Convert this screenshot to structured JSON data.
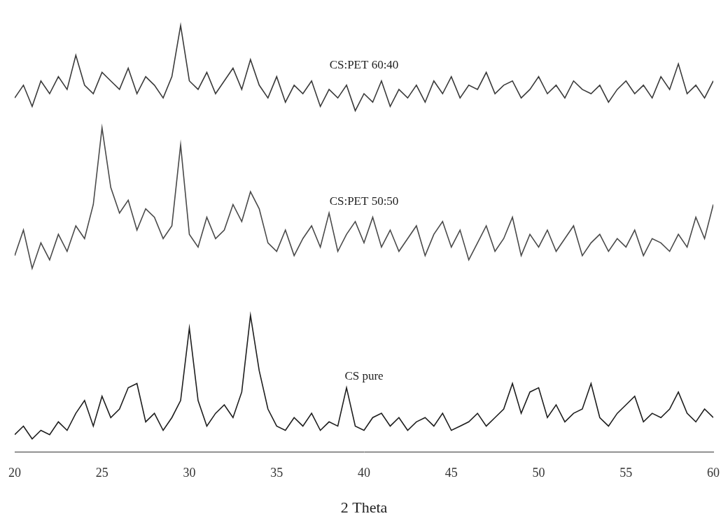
{
  "chart_data": {
    "type": "line",
    "xlabel": "2 Theta",
    "x": [
      20,
      20.5,
      21,
      21.5,
      22,
      22.5,
      23,
      23.5,
      24,
      24.5,
      25,
      25.5,
      26,
      26.5,
      27,
      27.5,
      28,
      28.5,
      29,
      29.5,
      30,
      30.5,
      31,
      31.5,
      32,
      32.5,
      33,
      33.5,
      34,
      34.5,
      35,
      35.5,
      36,
      36.5,
      37,
      37.5,
      38,
      38.5,
      39,
      39.5,
      40,
      40.5,
      41,
      41.5,
      42,
      42.5,
      43,
      43.5,
      44,
      44.5,
      45,
      45.5,
      46,
      46.5,
      47,
      47.5,
      48,
      48.5,
      49,
      49.5,
      50,
      50.5,
      51,
      51.5,
      52,
      52.5,
      53,
      53.5,
      54,
      54.5,
      55,
      55.5,
      56,
      56.5,
      57,
      57.5,
      58,
      58.5,
      59,
      59.5,
      60
    ],
    "series": [
      {
        "name": "CS:PET 60:40",
        "color": "#3a3a3a",
        "values": [
          83,
          86,
          81,
          87,
          84,
          88,
          85,
          93,
          86,
          84,
          89,
          87,
          85,
          90,
          84,
          88,
          86,
          83,
          88,
          100,
          87,
          85,
          89,
          84,
          87,
          90,
          85,
          92,
          86,
          83,
          88,
          82,
          86,
          84,
          87,
          81,
          85,
          83,
          86,
          80,
          84,
          82,
          87,
          81,
          85,
          83,
          86,
          82,
          87,
          84,
          88,
          83,
          86,
          85,
          89,
          84,
          86,
          87,
          83,
          85,
          88,
          84,
          86,
          83,
          87,
          85,
          84,
          86,
          82,
          85,
          87,
          84,
          86,
          83,
          88,
          85,
          91,
          84,
          86,
          83,
          87
        ]
      },
      {
        "name": "CS:PET 50:50",
        "color": "#4a4a4a",
        "values": [
          46,
          52,
          43,
          49,
          45,
          51,
          47,
          53,
          50,
          58,
          76,
          62,
          56,
          59,
          52,
          57,
          55,
          50,
          53,
          72,
          51,
          48,
          55,
          50,
          52,
          58,
          54,
          61,
          57,
          49,
          47,
          52,
          46,
          50,
          53,
          48,
          56,
          47,
          51,
          54,
          49,
          55,
          48,
          52,
          47,
          50,
          53,
          46,
          51,
          54,
          48,
          52,
          45,
          49,
          53,
          47,
          50,
          55,
          46,
          51,
          48,
          52,
          47,
          50,
          53,
          46,
          49,
          51,
          47,
          50,
          48,
          52,
          46,
          50,
          49,
          47,
          51,
          48,
          55,
          50,
          58
        ]
      },
      {
        "name": "CS pure",
        "color": "#1e1e1e",
        "values": [
          4,
          6,
          3,
          5,
          4,
          7,
          5,
          9,
          12,
          6,
          13,
          8,
          10,
          15,
          16,
          7,
          9,
          5,
          8,
          12,
          29,
          12,
          6,
          9,
          11,
          8,
          14,
          32,
          19,
          10,
          6,
          5,
          8,
          6,
          9,
          5,
          7,
          6,
          15,
          6,
          5,
          8,
          9,
          6,
          8,
          5,
          7,
          8,
          6,
          9,
          5,
          6,
          7,
          9,
          6,
          8,
          10,
          16,
          9,
          14,
          15,
          8,
          11,
          7,
          9,
          10,
          16,
          8,
          6,
          9,
          11,
          13,
          7,
          9,
          8,
          10,
          14,
          9,
          7,
          10,
          8
        ]
      }
    ],
    "xlim": [
      20,
      60
    ],
    "xticks": [
      20,
      25,
      30,
      35,
      40,
      45,
      50,
      55,
      60
    ],
    "ylim": [
      0,
      105
    ],
    "tick_labels": "x",
    "grid": false
  }
}
